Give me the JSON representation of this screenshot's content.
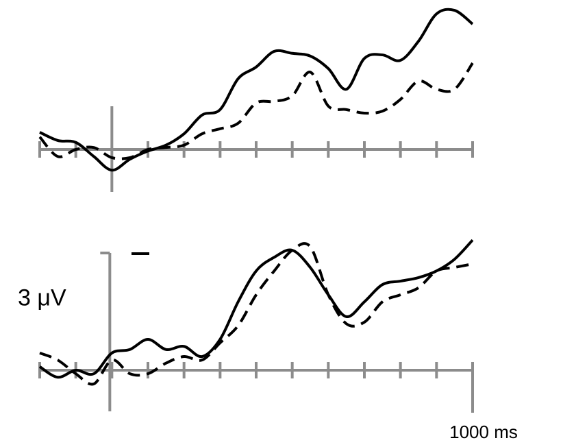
{
  "chart_data": [
    {
      "type": "line",
      "x": [
        -200,
        -150,
        -100,
        -50,
        0,
        50,
        100,
        150,
        200,
        250,
        300,
        350,
        400,
        450,
        500,
        550,
        600,
        650,
        700,
        750,
        800,
        850,
        900,
        950,
        1000
      ],
      "xlim": [
        -200,
        1000
      ],
      "xticks": [
        -200,
        -100,
        0,
        100,
        200,
        300,
        400,
        500,
        600,
        700,
        800,
        900,
        1000
      ],
      "ylim": [
        -1,
        3.8
      ],
      "series": [
        {
          "color": "#000000",
          "dash": false,
          "values": [
            0.44,
            0.23,
            0.18,
            -0.18,
            -0.53,
            -0.25,
            -0.04,
            0.11,
            0.4,
            0.88,
            1.02,
            1.81,
            2.11,
            2.51,
            2.46,
            2.39,
            2.07,
            1.54,
            2.33,
            2.42,
            2.28,
            2.77,
            3.47,
            3.56,
            3.21
          ]
        },
        {
          "color": "#000000",
          "dash": true,
          "values": [
            0.32,
            -0.18,
            0,
            0.05,
            -0.21,
            -0.21,
            0,
            0.05,
            0.11,
            0.4,
            0.53,
            0.67,
            1.19,
            1.23,
            1.37,
            1.98,
            1.11,
            1.02,
            0.93,
            0.98,
            1.28,
            1.75,
            1.54,
            1.54,
            2.21
          ]
        }
      ]
    },
    {
      "type": "line",
      "x": [
        -200,
        -150,
        -100,
        -50,
        0,
        50,
        100,
        150,
        200,
        250,
        300,
        350,
        400,
        450,
        500,
        550,
        600,
        650,
        700,
        750,
        800,
        850,
        900,
        950,
        1000
      ],
      "xlim": [
        -200,
        1000
      ],
      "xticks": [
        -200,
        -100,
        0,
        100,
        200,
        300,
        400,
        500,
        600,
        700,
        800,
        900,
        1000
      ],
      "ylim": [
        -1,
        3.8
      ],
      "xlabel": "1000 ms",
      "scale_bar": {
        "value": 3,
        "label": "3 μV"
      },
      "series": [
        {
          "color": "#000000",
          "dash": false,
          "values": [
            0.09,
            -0.18,
            0,
            -0.09,
            0.44,
            0.53,
            0.79,
            0.53,
            0.61,
            0.35,
            0.79,
            1.75,
            2.54,
            2.89,
            3.07,
            2.63,
            1.93,
            1.37,
            1.75,
            2.19,
            2.28,
            2.37,
            2.54,
            2.84,
            3.33
          ]
        },
        {
          "color": "#000000",
          "dash": true,
          "values": [
            0.44,
            0.26,
            -0.09,
            -0.35,
            0.26,
            -0.09,
            -0.09,
            0.18,
            0.35,
            0.26,
            0.7,
            1.14,
            1.93,
            2.54,
            3.07,
            3.16,
            1.93,
            1.19,
            1.23,
            1.75,
            1.93,
            2.11,
            2.54,
            2.63,
            2.72
          ]
        }
      ]
    }
  ]
}
